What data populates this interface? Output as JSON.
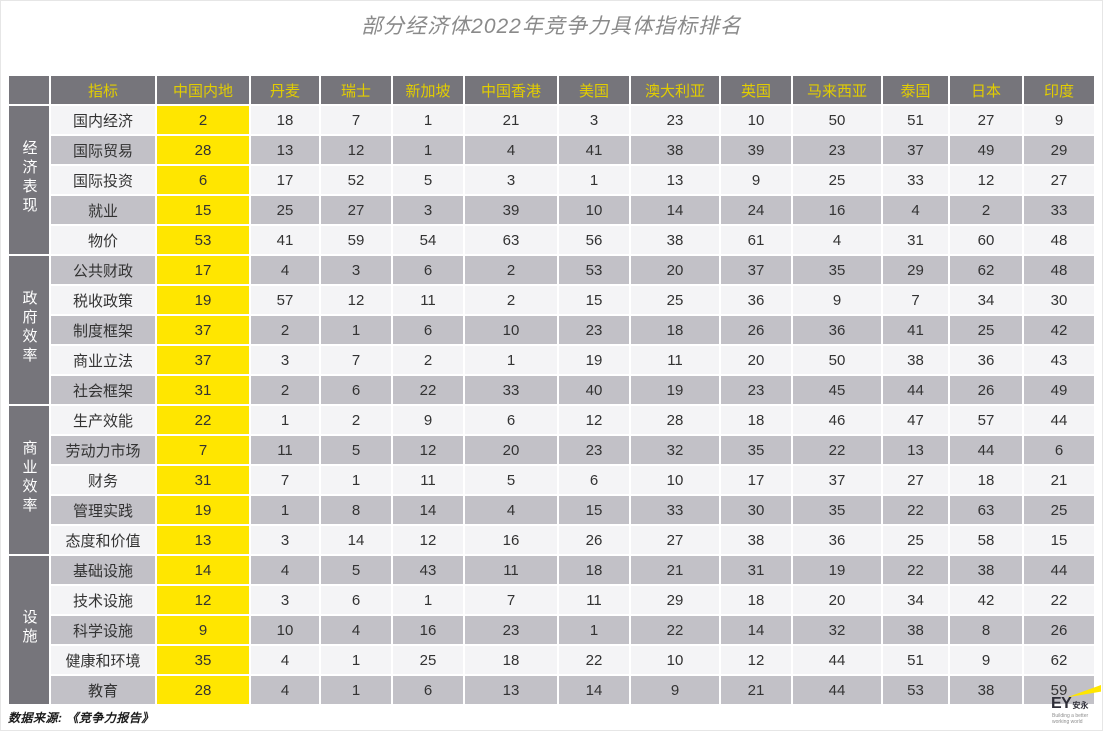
{
  "title": "部分经济体2022年竞争力具体指标排名",
  "source_note": "数据来源: 《竞争力报告》",
  "logo": {
    "ey": "EY",
    "cn": "安永",
    "tagline1": "Building a better",
    "tagline2": "working world"
  },
  "colors": {
    "header_bg": "#76757B",
    "header_text": "#E2CD00",
    "china_column_bg": "#FFE600",
    "row_light": "#F4F4F6",
    "row_dark": "#C2C1C7",
    "group_bg": "#76757B"
  },
  "chart_data": {
    "type": "table",
    "title": "部分经济体2022年竞争力具体指标排名",
    "corner_header": "指标",
    "columns": [
      "中国内地",
      "丹麦",
      "瑞士",
      "新加坡",
      "中国香港",
      "美国",
      "澳大利亚",
      "英国",
      "马来西亚",
      "泰国",
      "日本",
      "印度"
    ],
    "highlight_column": "中国内地",
    "groups": [
      {
        "label": "经济表现",
        "rows": [
          {
            "indicator": "国内经济",
            "values": [
              2,
              18,
              7,
              1,
              21,
              3,
              23,
              10,
              50,
              51,
              27,
              9
            ]
          },
          {
            "indicator": "国际贸易",
            "values": [
              28,
              13,
              12,
              1,
              4,
              41,
              38,
              39,
              23,
              37,
              49,
              29
            ]
          },
          {
            "indicator": "国际投资",
            "values": [
              6,
              17,
              52,
              5,
              3,
              1,
              13,
              9,
              25,
              33,
              12,
              27
            ]
          },
          {
            "indicator": "就业",
            "values": [
              15,
              25,
              27,
              3,
              39,
              10,
              14,
              24,
              16,
              4,
              2,
              33
            ]
          },
          {
            "indicator": "物价",
            "values": [
              53,
              41,
              59,
              54,
              63,
              56,
              38,
              61,
              4,
              31,
              60,
              48
            ]
          }
        ]
      },
      {
        "label": "政府效率",
        "rows": [
          {
            "indicator": "公共财政",
            "values": [
              17,
              4,
              3,
              6,
              2,
              53,
              20,
              37,
              35,
              29,
              62,
              48
            ]
          },
          {
            "indicator": "税收政策",
            "values": [
              19,
              57,
              12,
              11,
              2,
              15,
              25,
              36,
              9,
              7,
              34,
              30
            ]
          },
          {
            "indicator": "制度框架",
            "values": [
              37,
              2,
              1,
              6,
              10,
              23,
              18,
              26,
              36,
              41,
              25,
              42
            ]
          },
          {
            "indicator": "商业立法",
            "values": [
              37,
              3,
              7,
              2,
              1,
              19,
              11,
              20,
              50,
              38,
              36,
              43
            ]
          },
          {
            "indicator": "社会框架",
            "values": [
              31,
              2,
              6,
              22,
              33,
              40,
              19,
              23,
              45,
              44,
              26,
              49
            ]
          }
        ]
      },
      {
        "label": "商业效率",
        "rows": [
          {
            "indicator": "生产效能",
            "values": [
              22,
              1,
              2,
              9,
              6,
              12,
              28,
              18,
              46,
              47,
              57,
              44
            ]
          },
          {
            "indicator": "劳动力市场",
            "values": [
              7,
              11,
              5,
              12,
              20,
              23,
              32,
              35,
              22,
              13,
              44,
              6
            ]
          },
          {
            "indicator": "财务",
            "values": [
              31,
              7,
              1,
              11,
              5,
              6,
              10,
              17,
              37,
              27,
              18,
              21
            ]
          },
          {
            "indicator": "管理实践",
            "values": [
              19,
              1,
              8,
              14,
              4,
              15,
              33,
              30,
              35,
              22,
              63,
              25
            ]
          },
          {
            "indicator": "态度和价值",
            "values": [
              13,
              3,
              14,
              12,
              16,
              26,
              27,
              38,
              36,
              25,
              58,
              15
            ]
          }
        ]
      },
      {
        "label": "设施",
        "rows": [
          {
            "indicator": "基础设施",
            "values": [
              14,
              4,
              5,
              43,
              11,
              18,
              21,
              31,
              19,
              22,
              38,
              44
            ]
          },
          {
            "indicator": "技术设施",
            "values": [
              12,
              3,
              6,
              1,
              7,
              11,
              29,
              18,
              20,
              34,
              42,
              22
            ]
          },
          {
            "indicator": "科学设施",
            "values": [
              9,
              10,
              4,
              16,
              23,
              1,
              22,
              14,
              32,
              38,
              8,
              26
            ]
          },
          {
            "indicator": "健康和环境",
            "values": [
              35,
              4,
              1,
              25,
              18,
              22,
              10,
              12,
              44,
              51,
              9,
              62
            ]
          },
          {
            "indicator": "教育",
            "values": [
              28,
              4,
              1,
              6,
              13,
              14,
              9,
              21,
              44,
              53,
              38,
              59
            ]
          }
        ]
      }
    ]
  }
}
